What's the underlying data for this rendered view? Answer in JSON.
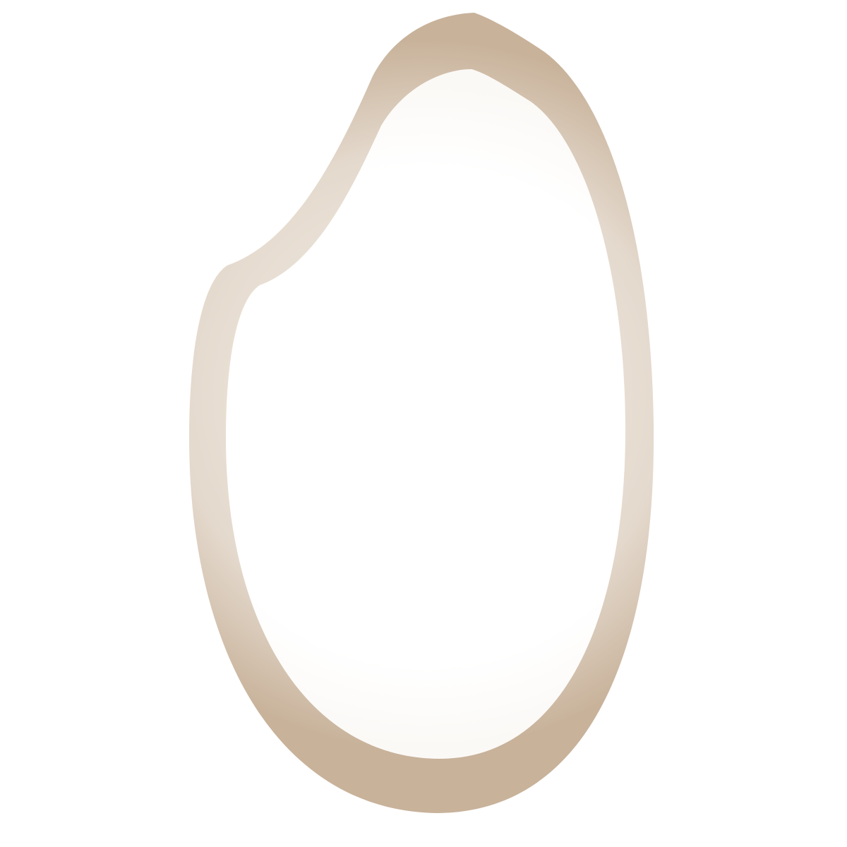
{
  "icon": {
    "name": "rice-grain-icon",
    "colors": {
      "background": "#ffffff",
      "outline": "#c8b29a",
      "outline_light": "#e4d9cd",
      "fill": "#ffffff",
      "fill_edge": "#fbf9f6"
    }
  }
}
